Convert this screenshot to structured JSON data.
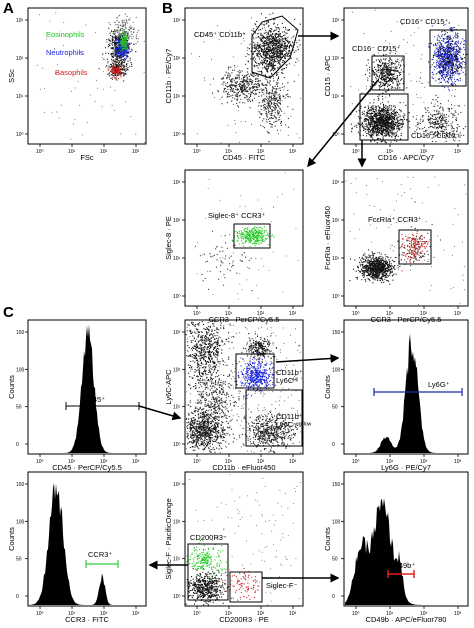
{
  "panel_labels": [
    "A",
    "B",
    "C"
  ],
  "ticks": {
    "log_decades": [
      "10⁰",
      "10¹",
      "10²",
      "10³"
    ]
  },
  "colors": {
    "eosinophils": "#1ec81e",
    "neutrophils": "#1e28dc",
    "basophils": "#d21e1e",
    "ly6g_bar": "#1e28aa",
    "cd49b_bar": "#e11e1e",
    "ccr3_bar": "#2ecc40"
  },
  "plots": {
    "a1": {
      "xlabel": "FSc",
      "ylabel": "SSc",
      "gates": {
        "eos": "Eosinophils",
        "neu": "Neutrophils",
        "bas": "Basophils"
      }
    },
    "b1": {
      "xlabel": "CD45 · FITC",
      "ylabel": "CD11b · PE/Cy7",
      "gates": {
        "g1": "CD45⁺ CD11b⁺"
      }
    },
    "b2": {
      "xlabel": "CD16 · APC/Cy7",
      "ylabel": "CD15 · APC",
      "gates": {
        "g1": "CD16⁺ CD15⁺",
        "g2": "CD16⁻ CD15⁺",
        "g3": "CD16⁻ CD15⁻"
      }
    },
    "b3": {
      "xlabel": "CCR3 · PerCP/Cy5.5",
      "ylabel": "Siglec-8 · PE",
      "gates": {
        "g1": "Siglec-8⁺ CCR3⁺"
      }
    },
    "b4": {
      "xlabel": "CCR3 · PerCP/Cy5.5",
      "ylabel": "FcεRIa · eFluor450",
      "gates": {
        "g1": "FcεRIa⁺ CCR3⁺"
      }
    },
    "c1": {
      "xlabel": "CD45 · PerCP/Cy5.5",
      "ylabel": "Counts",
      "gates": {
        "g1": "CD45⁺"
      }
    },
    "c2": {
      "xlabel": "CD11b · eFluor450",
      "ylabel": "Ly6C-APC",
      "gates": {
        "g1a": "CD11b⁺",
        "g1b": "Ly6Cᴴᴵ",
        "g2a": "CD11b⁺",
        "g2b": "Ly6Cⁿᵉᵍ/ˡᵒʷ"
      }
    },
    "c3": {
      "xlabel": "Ly6G · PE/Cy7",
      "ylabel": "Counts",
      "gates": {
        "g1": "Ly6G⁺"
      }
    },
    "c4": {
      "xlabel": "CCR3 · FITC",
      "ylabel": "Counts",
      "gates": {
        "g1": "CCR3⁺"
      }
    },
    "c5": {
      "xlabel": "CD200R3 · PE",
      "ylabel": "Siglec-F · PacificOrange",
      "gates": {
        "g1": "CD200R3⁻",
        "g2": "Siglec-F⁻"
      }
    },
    "c6": {
      "xlabel": "CD49b · APC/eFluor780",
      "ylabel": "Counts",
      "gates": {
        "g1": "CD49b⁺"
      }
    }
  }
}
